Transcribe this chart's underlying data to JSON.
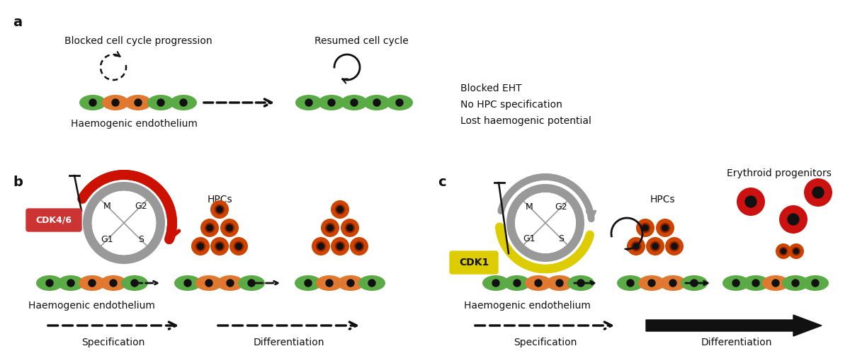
{
  "panel_a_label": "a",
  "panel_b_label": "b",
  "panel_c_label": "c",
  "text_blocked_cell_cycle": "Blocked cell cycle progression",
  "text_resumed_cell_cycle": "Resumed cell cycle",
  "text_blocked_eht": "Blocked EHT",
  "text_no_hpc": "No HPC specification",
  "text_lost_haem": "Lost haemogenic potential",
  "text_haem_endo_a": "Haemogenic endothelium",
  "text_haem_endo_b": "Haemogenic endothelium",
  "text_haem_endo_c": "Haemogenic endothelium",
  "text_hpcs_b": "HPCs",
  "text_hpcs_c": "HPCs",
  "text_specification_b": "Specification",
  "text_differentiation_b": "Differentiation",
  "text_specification_c": "Specification",
  "text_differentiation_c": "Differentiation",
  "text_erythroid": "Erythroid progenitors",
  "text_cdk46": "CDK4/6",
  "text_cdk1": "CDK1",
  "color_green": "#5aaa46",
  "color_orange": "#e07830",
  "color_red_hpc": "#cc4400",
  "color_red_erythroid": "#cc1111",
  "color_dark": "#111111",
  "color_gray_arc": "#999999",
  "color_cdk46_box": "#cc3333",
  "color_cdk1_box": "#ddcc00",
  "color_red_arrow": "#cc1100"
}
